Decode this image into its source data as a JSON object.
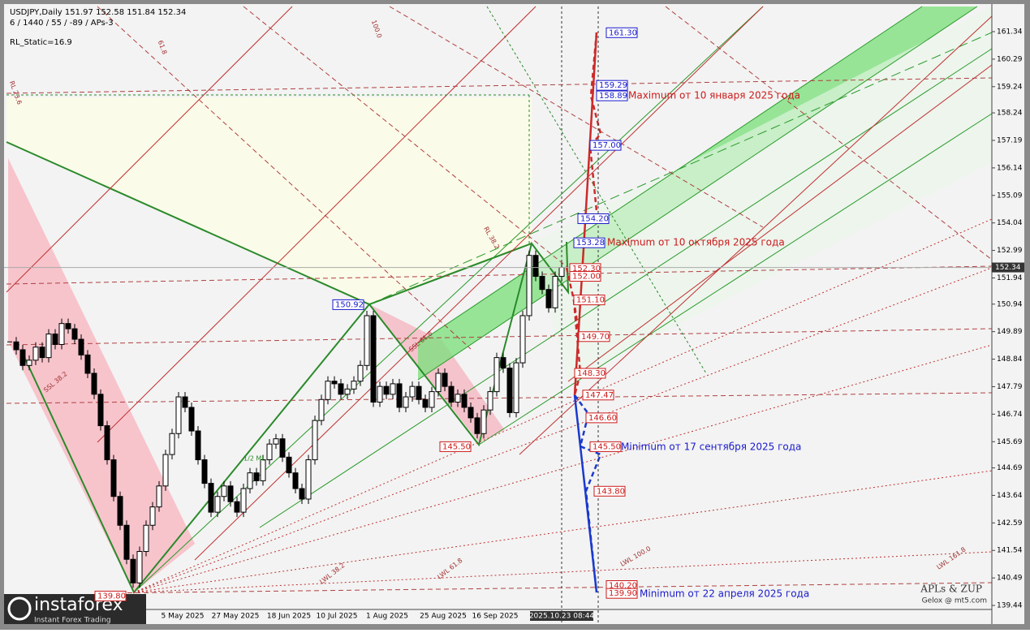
{
  "chart_data": {
    "type": "candlestick",
    "header": "USDJPY,Daily  151.97 152.58 151.84 152.34",
    "indicator_line": "6 / 1440 / 55 / -89 / APs-3",
    "static_label": "RL_Static=16.9",
    "closes": [
      149.5,
      149.2,
      148.6,
      148.8,
      149.3,
      148.9,
      149.8,
      149.4,
      150.2,
      150.0,
      149.6,
      149.0,
      148.3,
      147.5,
      146.3,
      145.0,
      143.6,
      142.5,
      141.2,
      140.3,
      141.5,
      142.5,
      143.2,
      144.0,
      145.2,
      146.0,
      147.4,
      147.0,
      146.1,
      145.0,
      144.1,
      143.0,
      143.6,
      144.0,
      143.4,
      143.0,
      143.9,
      144.5,
      144.2,
      145.0,
      145.6,
      145.8,
      145.1,
      144.5,
      143.9,
      143.5,
      145.0,
      146.5,
      147.3,
      148.0,
      147.9,
      147.5,
      147.7,
      148.0,
      148.6,
      150.5,
      147.2,
      147.8,
      147.5,
      147.9,
      147.0,
      147.4,
      147.8,
      147.3,
      147.0,
      147.6,
      148.3,
      147.8,
      147.2,
      147.5,
      147.0,
      146.6,
      146.0,
      146.9,
      147.6,
      148.9,
      148.5,
      146.8,
      148.7,
      150.5,
      152.8,
      152.0,
      151.5,
      150.8,
      152.0,
      152.34
    ],
    "ylim": [
      138.76,
      162.3
    ],
    "yticks": [
      161.34,
      160.29,
      159.24,
      158.24,
      157.19,
      156.14,
      155.09,
      154.04,
      152.99,
      151.94,
      150.94,
      149.89,
      148.84,
      147.79,
      146.74,
      145.69,
      144.69,
      143.64,
      142.59,
      141.54,
      140.49,
      139.44
    ],
    "current_price": 152.34,
    "dates": [
      "5 May 2025",
      "27 May 2025",
      "18 Jun 2025",
      "10 Jul 2025",
      "1 Aug 2025",
      "25 Aug 2025",
      "16 Sep 2025"
    ],
    "cursor_time": "2025.10.23 08:44",
    "levels": [
      {
        "value": 161.3,
        "label": "161.30",
        "color": "#1a1acc"
      },
      {
        "value": 159.29,
        "label": "159.29",
        "color": "#1a1acc"
      },
      {
        "value": 158.89,
        "label": "158.89",
        "color": "#1a1acc"
      },
      {
        "value": 157,
        "label": "157.00",
        "color": "#1a1acc"
      },
      {
        "value": 154.2,
        "label": "154.20",
        "color": "#1a1acc"
      },
      {
        "value": 153.28,
        "label": "153.28",
        "color": "#1a1acc"
      },
      {
        "value": 152.3,
        "label": "152.30",
        "color": "#cc1a1a"
      },
      {
        "value": 152,
        "label": "152.00",
        "color": "#cc1a1a"
      },
      {
        "value": 151.1,
        "label": "151.10",
        "color": "#cc1a1a"
      },
      {
        "value": 149.7,
        "label": "149.70",
        "color": "#cc1a1a"
      },
      {
        "value": 148.3,
        "label": "148.30",
        "color": "#cc1a1a"
      },
      {
        "value": 147.47,
        "label": "147.47",
        "color": "#cc1a1a"
      },
      {
        "value": 146.6,
        "label": "146.60",
        "color": "#cc1a1a"
      },
      {
        "value": 145.5,
        "label": "145.50",
        "color": "#cc1a1a"
      },
      {
        "value": 143.8,
        "label": "143.80",
        "color": "#cc1a1a"
      },
      {
        "value": 140.2,
        "label": "140.20",
        "color": "#cc1a1a"
      },
      {
        "value": 139.9,
        "label": "139.90",
        "color": "#cc1a1a"
      },
      {
        "value": 150.92,
        "label": "150.92",
        "color": "#1a1acc"
      },
      {
        "value": 145.5,
        "label": "145.50",
        "color": "#cc1a1a"
      },
      {
        "value": 139.8,
        "label": "139.80",
        "color": "#cc1a1a"
      }
    ],
    "annotations": [
      {
        "text": "Maximum от 10 января 2025 года",
        "color": "#cc1a1a"
      },
      {
        "text": "Maximum от 10 октября 2025 года",
        "color": "#cc1a1a"
      },
      {
        "text": "Minimum от 17 сентября 2025 года",
        "color": "#1a1acc"
      },
      {
        "text": "Minimum от 22 апреля 2025 года",
        "color": "#1a1acc"
      }
    ],
    "line_labels": [
      "LWL 38.2",
      "LWL 61.8",
      "LWL 100.0",
      "LWL 161.8",
      "1/2 ML",
      "SSL 61.8",
      "SSL 38.2",
      "RL 23.6",
      "RL 38.2",
      "61.8",
      "100.0"
    ],
    "watermark": [
      "APLs & ZUP",
      "Gelox @ mt5.com"
    ],
    "logo": [
      "instaforex",
      "Instant Forex Trading"
    ]
  }
}
